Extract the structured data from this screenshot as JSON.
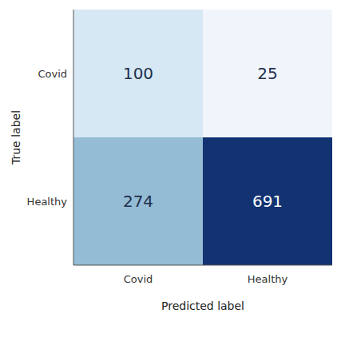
{
  "chart_data": {
    "type": "heatmap",
    "xlabel": "Predicted label",
    "ylabel": "True label",
    "x": [
      "Covid",
      "Healthy"
    ],
    "y": [
      "Covid",
      "Healthy"
    ],
    "values": [
      [
        100,
        25
      ],
      [
        274,
        691
      ]
    ],
    "colors": [
      [
        "#d6e8f3",
        "#f0f5fb"
      ],
      [
        "#94bcd4",
        "#123272"
      ]
    ],
    "data_labels": true
  }
}
